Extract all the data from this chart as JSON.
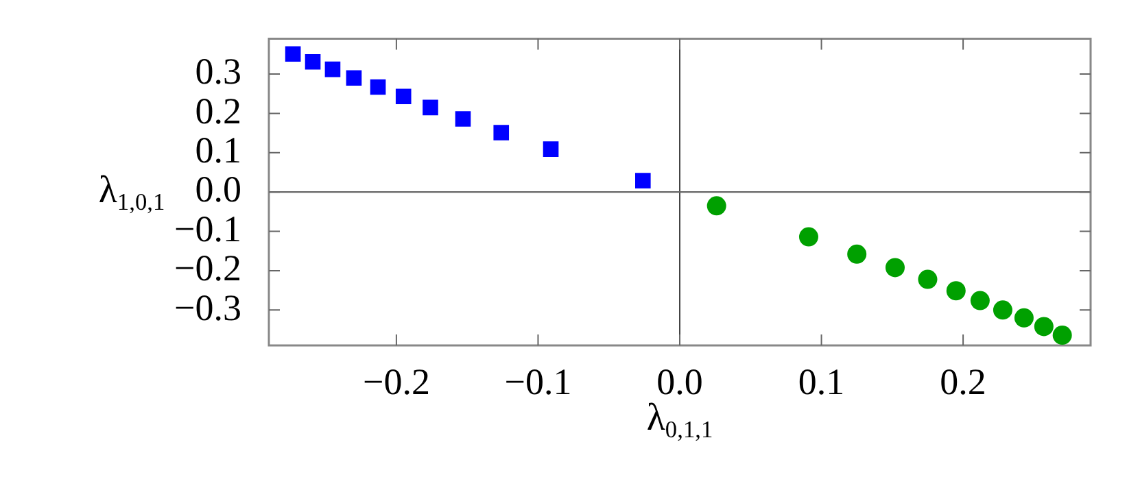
{
  "chart_data": {
    "type": "scatter",
    "xlabel": "λ$_{0,1,1}$",
    "ylabel": "λ$_{1,0,1}$",
    "series": [
      {
        "color": "#0000ff",
        "marker": "square",
        "x": [
          -0.273,
          -0.259,
          -0.245,
          -0.23,
          -0.213,
          -0.195,
          -0.176,
          -0.153,
          -0.126,
          -0.091,
          -0.026
        ],
        "values": [
          0.351,
          0.331,
          0.312,
          0.29,
          0.267,
          0.243,
          0.215,
          0.186,
          0.151,
          0.109,
          0.029
        ]
      },
      {
        "color": "#00a000",
        "marker": "circle",
        "x": [
          0.026,
          0.091,
          0.125,
          0.152,
          0.175,
          0.195,
          0.212,
          0.228,
          0.243,
          0.257,
          0.27
        ],
        "values": [
          -0.035,
          -0.114,
          -0.158,
          -0.192,
          -0.222,
          -0.251,
          -0.276,
          -0.3,
          -0.32,
          -0.342,
          -0.364
        ]
      }
    ],
    "xlim": [
      -0.29,
      0.29
    ],
    "ylim": [
      -0.39,
      0.39
    ],
    "xticks": [
      {
        "value": -0.2,
        "label": "−0.2"
      },
      {
        "value": -0.1,
        "label": "−0.1"
      },
      {
        "value": 0,
        "label": "0.0"
      },
      {
        "value": 0.1,
        "label": "0.1"
      },
      {
        "value": 0.2,
        "label": "0.2"
      }
    ],
    "yticks": [
      {
        "value": -0.3,
        "label": "−0.3"
      },
      {
        "value": -0.2,
        "label": "−0.2"
      },
      {
        "value": -0.1,
        "label": "−0.1"
      },
      {
        "value": 0,
        "label": "0.0"
      },
      {
        "value": 0.1,
        "label": "0.1"
      },
      {
        "value": 0.2,
        "label": "0.2"
      },
      {
        "value": 0.3,
        "label": "0.3"
      }
    ],
    "ref_lines": [
      {
        "axis": "x",
        "value": 0,
        "color": "#444444"
      },
      {
        "axis": "y",
        "value": 0,
        "color": "#666666"
      }
    ],
    "grid": false,
    "legend": false
  }
}
